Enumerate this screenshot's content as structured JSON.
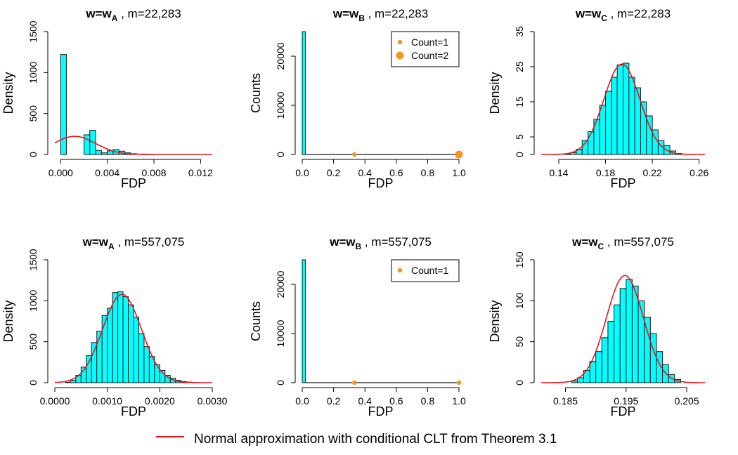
{
  "figure": {
    "legend_label": "Normal approximation with conditional CLT from Theorem 3.1",
    "legend_color": "#e8141b"
  },
  "colors": {
    "bar_fill": "#00ffff",
    "bar_stroke": "#1a1a1a",
    "curve": "#e8141b",
    "point": "#f7941d"
  },
  "chart_data": [
    {
      "type": "histogram",
      "title_main": "w=w",
      "title_sub": "A",
      "title_rest": " , m=22,283",
      "xlabel": "FDP",
      "ylabel": "Density",
      "xlim": [
        -0.0005,
        0.013
      ],
      "ylim": [
        0,
        1500
      ],
      "xticks": [
        0.0,
        0.004,
        0.008,
        0.012
      ],
      "xtick_labels": [
        "0.000",
        "0.004",
        "0.008",
        "0.012"
      ],
      "yticks": [
        0,
        500,
        1000,
        1500
      ],
      "ytick_labels": [
        "0",
        "500",
        "1000",
        "1500"
      ],
      "bin_edges": [
        0.0,
        0.0005,
        0.001,
        0.0015,
        0.002,
        0.0025,
        0.003,
        0.0035,
        0.004,
        0.0045,
        0.005,
        0.0055,
        0.006,
        0.0065,
        0.007,
        0.0075,
        0.008
      ],
      "counts": [
        1220,
        0,
        0,
        0,
        240,
        295,
        50,
        20,
        45,
        60,
        40,
        20,
        10,
        5,
        5,
        3
      ],
      "curve": {
        "kind": "normal",
        "mean": 0.0012,
        "sd": 0.0018,
        "scale": 1,
        "x_range": [
          -0.0005,
          0.013
        ]
      }
    },
    {
      "type": "histogram",
      "title_main": "w=w",
      "title_sub": "B",
      "title_rest": " , m=22,283",
      "xlabel": "FDP",
      "ylabel": "Counts",
      "xlim": [
        0,
        1
      ],
      "ylim": [
        0,
        25000
      ],
      "xticks": [
        0.0,
        0.2,
        0.4,
        0.6,
        0.8,
        1.0
      ],
      "xtick_labels": [
        "0.0",
        "0.2",
        "0.4",
        "0.6",
        "0.8",
        "1.0"
      ],
      "yticks": [
        0,
        10000,
        20000
      ],
      "ytick_labels": [
        "0",
        "10000",
        "20000"
      ],
      "bin_edges": [
        0.0,
        0.02
      ],
      "counts": [
        25000
      ],
      "baseline": {
        "x_range": [
          0.02,
          1.0
        ],
        "value": 0
      },
      "points": [
        {
          "x": 0.333,
          "y": 0,
          "size": "small"
        },
        {
          "x": 1.0,
          "y": 0,
          "size": "large"
        }
      ],
      "legend": [
        {
          "label": "Count=1",
          "size": "small"
        },
        {
          "label": "Count=2",
          "size": "large"
        }
      ]
    },
    {
      "type": "histogram",
      "title_main": "w=w",
      "title_sub": "C",
      "title_rest": " , m=22,283",
      "xlabel": "FDP",
      "ylabel": "Density",
      "xlim": [
        0.125,
        0.265
      ],
      "ylim": [
        0,
        35
      ],
      "xticks": [
        0.14,
        0.18,
        0.22,
        0.26
      ],
      "xtick_labels": [
        "0.14",
        "0.18",
        "0.22",
        "0.26"
      ],
      "yticks": [
        0,
        5,
        15,
        25,
        35
      ],
      "ytick_labels": [
        "0",
        "5",
        "15",
        "25",
        "35"
      ],
      "bin_edges": [
        0.145,
        0.15,
        0.155,
        0.16,
        0.165,
        0.17,
        0.175,
        0.18,
        0.185,
        0.19,
        0.195,
        0.2,
        0.205,
        0.21,
        0.215,
        0.22,
        0.225,
        0.23,
        0.235,
        0.24,
        0.245
      ],
      "counts": [
        0.2,
        0.5,
        1.5,
        4,
        6.5,
        10,
        14,
        18,
        22,
        25.5,
        26,
        22,
        19,
        15,
        11,
        7,
        4,
        2.5,
        1,
        0.3
      ],
      "curve": {
        "kind": "normal",
        "mean": 0.194,
        "sd": 0.0155,
        "scale": 1,
        "x_range": [
          0.125,
          0.265
        ]
      }
    },
    {
      "type": "histogram",
      "title_main": "w=w",
      "title_sub": "A",
      "title_rest": " , m=557,075",
      "xlabel": "FDP",
      "ylabel": "Density",
      "xlim": [
        0,
        0.003
      ],
      "ylim": [
        0,
        1500
      ],
      "xticks": [
        0.0,
        0.001,
        0.002,
        0.003
      ],
      "xtick_labels": [
        "0.0000",
        "0.0010",
        "0.0020",
        "0.0030"
      ],
      "yticks": [
        0,
        500,
        1000,
        1500
      ],
      "ytick_labels": [
        "0",
        "500",
        "1000",
        "1500"
      ],
      "bin_edges": [
        0.0,
        0.0001,
        0.0002,
        0.0003,
        0.0004,
        0.0005,
        0.0006,
        0.0007,
        0.0008,
        0.0009,
        0.001,
        0.0011,
        0.0012,
        0.0013,
        0.0014,
        0.0015,
        0.0016,
        0.0017,
        0.0018,
        0.0019,
        0.002,
        0.0021,
        0.0022,
        0.0023,
        0.0024,
        0.0025,
        0.0026,
        0.0027
      ],
      "counts": [
        0,
        0,
        5,
        30,
        90,
        190,
        330,
        490,
        630,
        820,
        910,
        1100,
        1110,
        1050,
        950,
        800,
        600,
        440,
        320,
        220,
        150,
        90,
        55,
        30,
        15,
        8,
        3
      ],
      "curve": {
        "kind": "normal",
        "mean": 0.00128,
        "sd": 0.00037,
        "scale": 1,
        "x_range": [
          0,
          0.003
        ]
      }
    },
    {
      "type": "histogram",
      "title_main": "w=w",
      "title_sub": "B",
      "title_rest": " , m=557,075",
      "xlabel": "FDP",
      "ylabel": "Counts",
      "xlim": [
        0,
        1
      ],
      "ylim": [
        0,
        25000
      ],
      "xticks": [
        0.0,
        0.2,
        0.4,
        0.6,
        0.8,
        1.0
      ],
      "xtick_labels": [
        "0.0",
        "0.2",
        "0.4",
        "0.6",
        "0.8",
        "1.0"
      ],
      "yticks": [
        0,
        10000,
        20000
      ],
      "ytick_labels": [
        "0",
        "10000",
        "20000"
      ],
      "bin_edges": [
        0.0,
        0.02
      ],
      "counts": [
        25000
      ],
      "baseline": {
        "x_range": [
          0.02,
          1.0
        ],
        "value": 0
      },
      "points": [
        {
          "x": 0.333,
          "y": 0,
          "size": "small"
        },
        {
          "x": 1.0,
          "y": 0,
          "size": "small"
        }
      ],
      "legend": [
        {
          "label": "Count=1",
          "size": "small"
        }
      ]
    },
    {
      "type": "histogram",
      "title_main": "w=w",
      "title_sub": "C",
      "title_rest": " , m=557,075",
      "xlabel": "FDP",
      "ylabel": "Density",
      "xlim": [
        0.181,
        0.208
      ],
      "ylim": [
        0,
        150
      ],
      "xticks": [
        0.185,
        0.195,
        0.205
      ],
      "xtick_labels": [
        "0.185",
        "0.195",
        "0.205"
      ],
      "yticks": [
        0,
        50,
        100,
        150
      ],
      "ytick_labels": [
        "0",
        "50",
        "100",
        "150"
      ],
      "bin_edges": [
        0.186,
        0.187,
        0.188,
        0.189,
        0.19,
        0.191,
        0.192,
        0.193,
        0.194,
        0.195,
        0.196,
        0.197,
        0.198,
        0.199,
        0.2,
        0.201,
        0.202,
        0.203,
        0.204
      ],
      "counts": [
        2,
        6,
        15,
        26,
        38,
        55,
        75,
        95,
        115,
        126,
        118,
        100,
        80,
        60,
        38,
        22,
        10,
        4
      ],
      "curve": {
        "kind": "normal",
        "mean": 0.1948,
        "sd": 0.00305,
        "scale": 1,
        "x_range": [
          0.181,
          0.208
        ]
      }
    }
  ]
}
